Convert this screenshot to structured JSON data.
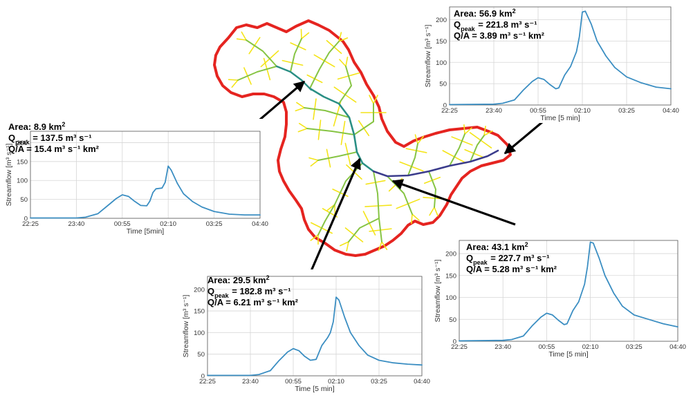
{
  "colors": {
    "series": "#3b8ec2",
    "boundary": "#e52420",
    "stream_low": "#f4e418",
    "stream_mid": "#86c443",
    "stream_high": "#2a8f84",
    "stream_main": "#3b3c8c",
    "arrow": "#000000"
  },
  "chart_data": [
    {
      "id": "c1",
      "type": "line",
      "xlabel": "Time [5min]",
      "ylabel": "Streamflow [m³ s⁻¹]",
      "x_ticks": [
        "22:25",
        "23:40",
        "00:55",
        "02:10",
        "03:25",
        "04:40"
      ],
      "y_ticks": [
        0,
        50,
        100,
        150,
        200
      ],
      "xlim": [
        "22:25",
        "04:40"
      ],
      "ylim": [
        0,
        230
      ],
      "grid": true,
      "annotation": {
        "area_label": "Area: ",
        "area_value": "8.9 km",
        "q_label": "Q",
        "q_sub": "peak",
        "q_value": "= 137.5 m³ s⁻¹",
        "qa_label": "Q/A = ",
        "qa_value": "15.4 m³ s⁻¹ km²"
      },
      "series": [
        {
          "x": [
            "22:25",
            "23:40",
            "23:55",
            "00:15",
            "00:30",
            "00:45",
            "00:55",
            "01:05",
            "01:15",
            "01:25",
            "01:35",
            "01:40",
            "01:45",
            "01:50",
            "02:00",
            "02:05",
            "02:10",
            "02:15",
            "02:25",
            "02:35",
            "02:50",
            "03:05",
            "03:25",
            "03:50",
            "04:15",
            "04:40"
          ],
          "y": [
            1,
            1,
            3,
            12,
            32,
            52,
            62,
            58,
            45,
            34,
            33,
            45,
            68,
            78,
            80,
            95,
            138,
            127,
            92,
            65,
            44,
            30,
            18,
            11,
            9,
            9
          ]
        }
      ]
    },
    {
      "id": "c2",
      "type": "line",
      "xlabel": "Time [5 min]",
      "ylabel": "Streamflow [m³ s⁻¹]",
      "x_ticks": [
        "22:25",
        "23:40",
        "00:55",
        "02:10",
        "03:25",
        "04:40"
      ],
      "y_ticks": [
        0,
        50,
        100,
        150,
        200
      ],
      "xlim": [
        "22:25",
        "04:40"
      ],
      "ylim": [
        0,
        230
      ],
      "grid": true,
      "annotation": {
        "area_label": "Area: ",
        "area_value": "56.9 km",
        "q_label": "Q",
        "q_sub": "peak",
        "q_value": "= 221.8 m³ s⁻¹",
        "qa_label": "Q/A = ",
        "qa_value": "3.89 m³ s⁻¹ km²"
      },
      "series": [
        {
          "x": [
            "22:25",
            "23:40",
            "23:55",
            "00:15",
            "00:30",
            "00:45",
            "00:55",
            "01:05",
            "01:15",
            "01:25",
            "01:30",
            "01:40",
            "01:50",
            "02:00",
            "02:05",
            "02:10",
            "02:15",
            "02:25",
            "02:35",
            "02:50",
            "03:05",
            "03:25",
            "03:50",
            "04:15",
            "04:40"
          ],
          "y": [
            1,
            2,
            4,
            12,
            35,
            55,
            64,
            60,
            48,
            38,
            40,
            70,
            90,
            125,
            160,
            218,
            220,
            190,
            150,
            115,
            88,
            66,
            52,
            42,
            38
          ]
        }
      ]
    },
    {
      "id": "c3",
      "type": "line",
      "xlabel": "Time [5 min]",
      "ylabel": "Streamflow [m³ s⁻¹]",
      "x_ticks": [
        "22:25",
        "23:40",
        "00:55",
        "02:10",
        "03:25",
        "04:40"
      ],
      "y_ticks": [
        0,
        50,
        100,
        150,
        200
      ],
      "xlim": [
        "22:25",
        "04:40"
      ],
      "ylim": [
        0,
        230
      ],
      "grid": true,
      "annotation": {
        "area_label": "Area: ",
        "area_value": "29.5 km",
        "q_label": "Q",
        "q_sub": "peak",
        "q_value": "= 182.8 m³ s⁻¹",
        "qa_label": "Q/A = ",
        "qa_value": "6.21 m³ s⁻¹ km²"
      },
      "series": [
        {
          "x": [
            "22:25",
            "23:40",
            "23:55",
            "00:15",
            "00:30",
            "00:45",
            "00:55",
            "01:05",
            "01:15",
            "01:25",
            "01:35",
            "01:45",
            "01:55",
            "02:00",
            "02:05",
            "02:10",
            "02:15",
            "02:25",
            "02:35",
            "02:50",
            "03:05",
            "03:25",
            "03:50",
            "04:15",
            "04:40"
          ],
          "y": [
            1,
            1,
            3,
            12,
            35,
            55,
            63,
            58,
            45,
            36,
            38,
            70,
            88,
            100,
            125,
            182,
            175,
            135,
            100,
            70,
            48,
            36,
            30,
            27,
            25
          ]
        }
      ]
    },
    {
      "id": "c4",
      "type": "line",
      "xlabel": "Time [5 min]",
      "ylabel": "Streamflow [m³ s⁻¹]",
      "x_ticks": [
        "22:25",
        "23:40",
        "00:55",
        "02:10",
        "03:25",
        "04:40"
      ],
      "y_ticks": [
        0,
        50,
        100,
        150,
        200
      ],
      "xlim": [
        "22:25",
        "04:40"
      ],
      "ylim": [
        0,
        230
      ],
      "grid": true,
      "annotation": {
        "area_label": "Area: ",
        "area_value": "43.1 km",
        "q_label": "Q",
        "q_sub": "peak",
        "q_value": "= 227.7 m³ s⁻¹",
        "qa_label": "Q/A = ",
        "qa_value": "5.28 m³ s⁻¹ km²"
      },
      "series": [
        {
          "x": [
            "22:25",
            "23:40",
            "23:55",
            "00:15",
            "00:30",
            "00:45",
            "00:55",
            "01:05",
            "01:15",
            "01:25",
            "01:30",
            "01:40",
            "01:50",
            "02:00",
            "02:05",
            "02:10",
            "02:15",
            "02:25",
            "02:35",
            "02:50",
            "03:05",
            "03:25",
            "03:50",
            "04:15",
            "04:40"
          ],
          "y": [
            1,
            2,
            4,
            12,
            35,
            55,
            64,
            60,
            48,
            38,
            40,
            70,
            90,
            130,
            170,
            226,
            224,
            190,
            150,
            110,
            80,
            60,
            50,
            40,
            33
          ]
        }
      ]
    }
  ]
}
